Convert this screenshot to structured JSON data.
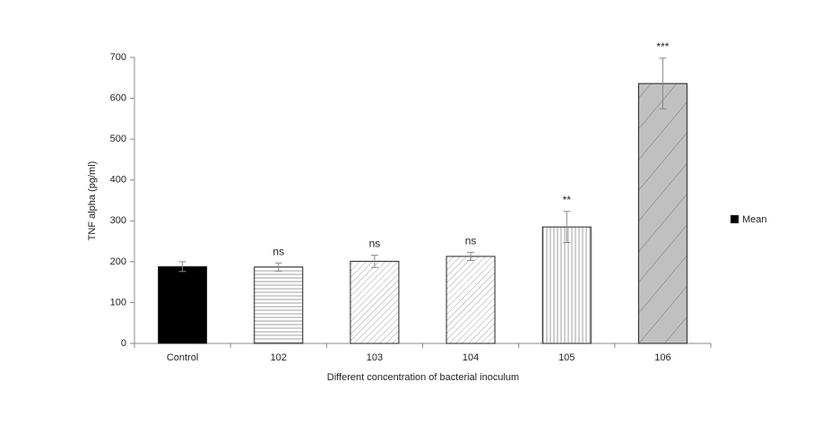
{
  "chart_data": {
    "type": "bar",
    "x_label": "Different concentration of bacterial inoculum",
    "y_label": "TNF alpha (pg/ml)",
    "categories": [
      "Control",
      "102",
      "103",
      "104",
      "105",
      "106"
    ],
    "series": [
      {
        "name": "Mean",
        "color": "#000000",
        "values": [
          188,
          187,
          201,
          213,
          285,
          636
        ],
        "errors": [
          12,
          10,
          15,
          10,
          38,
          62
        ],
        "fills": [
          "#000000",
          "#ffffff",
          "#ffffff",
          "#ffffff",
          "#ffffff",
          "#c0c0c0"
        ],
        "patterns": [
          "solid",
          "horizontal",
          "diagonal",
          "diagonal",
          "vertical",
          "wide-diagonal"
        ]
      }
    ],
    "annotations": [
      null,
      "ns",
      "ns",
      "ns",
      "**",
      "***"
    ],
    "ylim": [
      0,
      700
    ],
    "yticks": [
      0,
      100,
      200,
      300,
      400,
      500,
      600,
      700
    ],
    "legend_position": "right"
  }
}
